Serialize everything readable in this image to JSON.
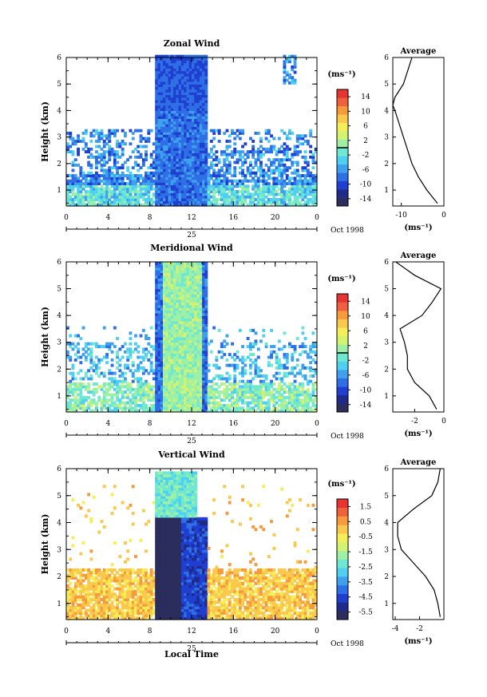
{
  "figure": {
    "bottom_xlabel": "Local Time",
    "ylabel": "Height (km)",
    "date_label": "Oct 1998",
    "day_label": "25",
    "unit_label": "(ms⁻¹)",
    "avg_unit_label": "(ms⁻¹)",
    "avg_title": "Average",
    "x_ticks": [
      "0",
      "4",
      "8",
      "12",
      "16",
      "20",
      "0"
    ],
    "y_ticks": [
      "1",
      "2",
      "3",
      "4",
      "5",
      "6"
    ]
  },
  "colors": {
    "scale": [
      "#2b2d5c",
      "#1f2a8a",
      "#1f3fd0",
      "#2f6fe6",
      "#3fa0ee",
      "#4fd0f0",
      "#6fe8d2",
      "#9ef0a4",
      "#d2f270",
      "#f6ee58",
      "#f9c84c",
      "#f79a3c",
      "#f1603c",
      "#e83430"
    ]
  },
  "chart_data": [
    {
      "type": "heatmap",
      "title": "Zonal Wind",
      "x_range_hours": [
        0,
        24
      ],
      "y_range_km": [
        0.4,
        6
      ],
      "colorbar": {
        "min": -16,
        "max": 16,
        "ticks": [
          "14",
          "10",
          "6",
          "2",
          "-2",
          "-6",
          "-10",
          "-14"
        ],
        "contour_level": 0
      },
      "average_profile": {
        "x_ticks": [
          "-10",
          "0"
        ],
        "x_range": [
          -12,
          0
        ],
        "height_km": [
          0.5,
          1.0,
          1.5,
          2.0,
          2.5,
          3.0,
          3.5,
          4.0,
          4.2,
          4.5,
          5.0,
          5.5,
          6.0
        ],
        "value": [
          -1.5,
          -4.0,
          -6.0,
          -7.5,
          -8.5,
          -9.5,
          -10.5,
          -11.5,
          -12.0,
          -11.5,
          -9.5,
          -8.5,
          -7.5
        ]
      }
    },
    {
      "type": "heatmap",
      "title": "Meridional Wind",
      "x_range_hours": [
        0,
        24
      ],
      "y_range_km": [
        0.4,
        6
      ],
      "colorbar": {
        "min": -16,
        "max": 16,
        "ticks": [
          "14",
          "10",
          "6",
          "2",
          "-2",
          "-6",
          "-10",
          "-14"
        ],
        "contour_level": 0
      },
      "average_profile": {
        "x_ticks": [
          "-2",
          "0"
        ],
        "x_range": [
          -3.5,
          0
        ],
        "height_km": [
          0.5,
          1.0,
          1.5,
          2.0,
          2.5,
          3.0,
          3.5,
          4.0,
          4.5,
          5.0,
          5.5,
          6.0
        ],
        "value": [
          -0.5,
          -1.0,
          -2.0,
          -2.5,
          -2.5,
          -2.7,
          -3.0,
          -1.5,
          -0.8,
          -0.2,
          -2.0,
          -3.3
        ]
      }
    },
    {
      "type": "heatmap",
      "title": "Vertical Wind",
      "x_range_hours": [
        0,
        24
      ],
      "y_range_km": [
        0.4,
        6
      ],
      "colorbar": {
        "min": -6.0,
        "max": 2.0,
        "ticks": [
          "1.5",
          "0.5",
          "-0.5",
          "-1.5",
          "-2.5",
          "-3.5",
          "-4.5",
          "-5.5"
        ]
      },
      "average_profile": {
        "x_ticks": [
          "-4",
          "-2"
        ],
        "x_range": [
          -4.2,
          0
        ],
        "height_km": [
          0.5,
          1.0,
          1.5,
          2.0,
          2.5,
          3.0,
          3.5,
          4.0,
          4.5,
          5.0,
          5.5,
          6.0
        ],
        "value": [
          -0.3,
          -0.5,
          -0.8,
          -1.5,
          -2.5,
          -3.5,
          -3.8,
          -3.8,
          -2.5,
          -1.0,
          -0.5,
          -0.3
        ]
      }
    }
  ]
}
